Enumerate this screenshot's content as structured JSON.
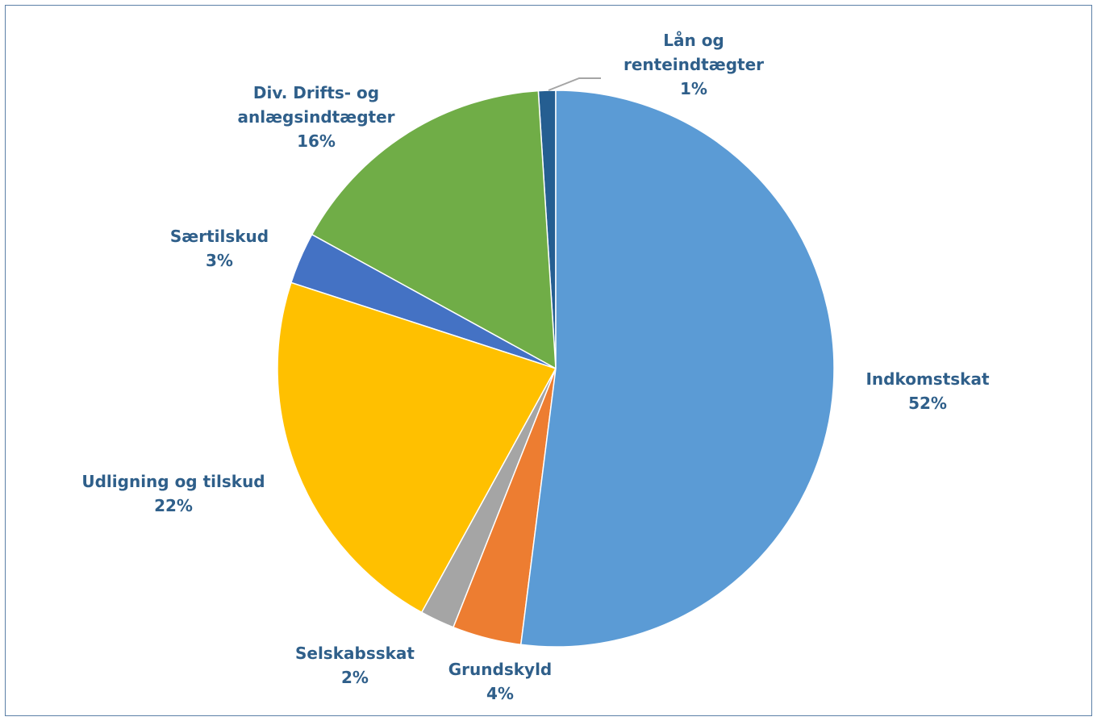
{
  "chart_data": {
    "type": "pie",
    "categories": [
      "Indkomstskat",
      "Grundskyld",
      "Selskabsskat",
      "Udligning og tilskud",
      "Særtilskud",
      "Div. Drifts- og anlægsindtægter",
      "Lån og renteindtægter"
    ],
    "values": [
      52,
      4,
      2,
      22,
      3,
      16,
      1
    ],
    "value_labels": [
      "52%",
      "4%",
      "2%",
      "22%",
      "3%",
      "16%",
      "1%"
    ],
    "colors": [
      "#5b9bd5",
      "#ed7d31",
      "#a5a5a5",
      "#ffc000",
      "#4472c4",
      "#70ad47",
      "#255e91"
    ]
  }
}
